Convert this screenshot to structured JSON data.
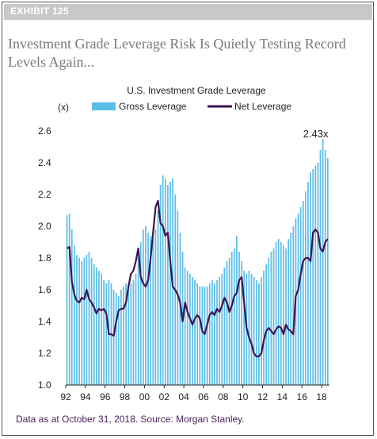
{
  "exhibit": {
    "label": "EXHIBIT 125"
  },
  "headline": "Investment Grade Leverage Risk Is Quietly Testing Record Levels Again...",
  "source": "Data as at October 31, 2018. Source: Morgan Stanley.",
  "colors": {
    "gross": "#5bbde8",
    "net": "#3a1650",
    "exhibit_bar": "#c8c8c8",
    "source_text": "#4b1e5a"
  },
  "chart_data": {
    "type": "bar",
    "title": "U.S. Investment Grade Leverage",
    "ylabel": "(x)",
    "ylim": [
      1.0,
      2.6
    ],
    "yticks": [
      "1.0",
      "1.2",
      "1.4",
      "1.6",
      "1.8",
      "2.0",
      "2.2",
      "2.4",
      "2.6"
    ],
    "xticks": [
      "92",
      "94",
      "96",
      "98",
      "00",
      "02",
      "04",
      "06",
      "08",
      "10",
      "12",
      "14",
      "16",
      "18"
    ],
    "xrange": [
      1992,
      2018.8
    ],
    "legend": [
      "Gross Leverage",
      "Net Leverage"
    ],
    "legend_position": "top",
    "annotation": {
      "text": "2.43x",
      "x": 2017.4,
      "y": 2.55
    },
    "series": [
      {
        "name": "Gross Leverage",
        "type": "bar",
        "x": [
          1992.0,
          1992.25,
          1992.5,
          1992.75,
          1993.0,
          1993.25,
          1993.5,
          1993.75,
          1994.0,
          1994.25,
          1994.5,
          1994.75,
          1995.0,
          1995.25,
          1995.5,
          1995.75,
          1996.0,
          1996.25,
          1996.5,
          1996.75,
          1997.0,
          1997.25,
          1997.5,
          1997.75,
          1998.0,
          1998.25,
          1998.5,
          1998.75,
          1999.0,
          1999.25,
          1999.5,
          1999.75,
          2000.0,
          2000.25,
          2000.5,
          2000.75,
          2001.0,
          2001.25,
          2001.5,
          2001.75,
          2002.0,
          2002.25,
          2002.5,
          2002.75,
          2003.0,
          2003.25,
          2003.5,
          2003.75,
          2004.0,
          2004.25,
          2004.5,
          2004.75,
          2005.0,
          2005.25,
          2005.5,
          2005.75,
          2006.0,
          2006.25,
          2006.5,
          2006.75,
          2007.0,
          2007.25,
          2007.5,
          2007.75,
          2008.0,
          2008.25,
          2008.5,
          2008.75,
          2009.0,
          2009.25,
          2009.5,
          2009.75,
          2010.0,
          2010.25,
          2010.5,
          2010.75,
          2011.0,
          2011.25,
          2011.5,
          2011.75,
          2012.0,
          2012.25,
          2012.5,
          2012.75,
          2013.0,
          2013.25,
          2013.5,
          2013.75,
          2014.0,
          2014.25,
          2014.5,
          2014.75,
          2015.0,
          2015.25,
          2015.5,
          2015.75,
          2016.0,
          2016.25,
          2016.5,
          2016.75,
          2017.0,
          2017.25,
          2017.5,
          2017.75,
          2018.0,
          2018.25,
          2018.5
        ],
        "values": [
          2.07,
          2.08,
          1.98,
          1.88,
          1.82,
          1.8,
          1.78,
          1.8,
          1.82,
          1.84,
          1.8,
          1.76,
          1.74,
          1.72,
          1.7,
          1.66,
          1.64,
          1.66,
          1.64,
          1.6,
          1.58,
          1.56,
          1.6,
          1.62,
          1.64,
          1.62,
          1.64,
          1.66,
          1.7,
          1.8,
          1.9,
          1.98,
          2.0,
          1.96,
          1.94,
          1.92,
          1.98,
          2.1,
          2.26,
          2.32,
          2.3,
          2.26,
          2.28,
          2.3,
          2.2,
          2.1,
          1.96,
          1.84,
          1.74,
          1.72,
          1.7,
          1.68,
          1.66,
          1.64,
          1.62,
          1.62,
          1.62,
          1.62,
          1.64,
          1.66,
          1.64,
          1.66,
          1.68,
          1.7,
          1.74,
          1.78,
          1.8,
          1.84,
          1.86,
          1.94,
          1.84,
          1.78,
          1.72,
          1.7,
          1.72,
          1.7,
          1.68,
          1.66,
          1.64,
          1.68,
          1.72,
          1.76,
          1.8,
          1.84,
          1.86,
          1.9,
          1.92,
          1.9,
          1.88,
          1.86,
          1.92,
          1.96,
          2.0,
          2.05,
          2.08,
          2.12,
          2.16,
          2.22,
          2.28,
          2.34,
          2.36,
          2.38,
          2.4,
          2.48,
          2.55,
          2.48,
          2.43
        ]
      },
      {
        "name": "Net Leverage",
        "type": "line",
        "x": [
          1992.0,
          1992.25,
          1992.5,
          1992.75,
          1993.0,
          1993.25,
          1993.5,
          1993.75,
          1994.0,
          1994.25,
          1994.5,
          1994.75,
          1995.0,
          1995.25,
          1995.5,
          1995.75,
          1996.0,
          1996.25,
          1996.5,
          1996.75,
          1997.0,
          1997.25,
          1997.5,
          1997.75,
          1998.0,
          1998.25,
          1998.5,
          1998.75,
          1999.0,
          1999.25,
          1999.5,
          1999.75,
          2000.0,
          2000.25,
          2000.5,
          2000.75,
          2001.0,
          2001.25,
          2001.5,
          2001.75,
          2002.0,
          2002.25,
          2002.5,
          2002.75,
          2003.0,
          2003.25,
          2003.5,
          2003.75,
          2004.0,
          2004.25,
          2004.5,
          2004.75,
          2005.0,
          2005.25,
          2005.5,
          2005.75,
          2006.0,
          2006.25,
          2006.5,
          2006.75,
          2007.0,
          2007.25,
          2007.5,
          2007.75,
          2008.0,
          2008.25,
          2008.5,
          2008.75,
          2009.0,
          2009.25,
          2009.5,
          2009.75,
          2010.0,
          2010.25,
          2010.5,
          2010.75,
          2011.0,
          2011.25,
          2011.5,
          2011.75,
          2012.0,
          2012.25,
          2012.5,
          2012.75,
          2013.0,
          2013.25,
          2013.5,
          2013.75,
          2014.0,
          2014.25,
          2014.5,
          2014.75,
          2015.0,
          2015.25,
          2015.5,
          2015.75,
          2016.0,
          2016.25,
          2016.5,
          2016.75,
          2017.0,
          2017.25,
          2017.5,
          2017.75,
          2018.0,
          2018.25,
          2018.5
        ],
        "values": [
          1.86,
          1.87,
          1.65,
          1.57,
          1.53,
          1.52,
          1.55,
          1.54,
          1.6,
          1.54,
          1.52,
          1.49,
          1.45,
          1.48,
          1.47,
          1.48,
          1.45,
          1.32,
          1.32,
          1.31,
          1.4,
          1.47,
          1.48,
          1.48,
          1.52,
          1.62,
          1.7,
          1.72,
          1.78,
          1.86,
          1.68,
          1.64,
          1.62,
          1.66,
          1.8,
          1.96,
          2.12,
          2.16,
          2.02,
          2.0,
          1.94,
          1.96,
          1.78,
          1.62,
          1.6,
          1.57,
          1.52,
          1.4,
          1.52,
          1.46,
          1.42,
          1.38,
          1.42,
          1.44,
          1.42,
          1.34,
          1.32,
          1.38,
          1.44,
          1.46,
          1.44,
          1.48,
          1.46,
          1.5,
          1.55,
          1.52,
          1.46,
          1.5,
          1.56,
          1.58,
          1.66,
          1.68,
          1.52,
          1.36,
          1.3,
          1.26,
          1.2,
          1.18,
          1.18,
          1.2,
          1.28,
          1.34,
          1.36,
          1.34,
          1.32,
          1.35,
          1.37,
          1.36,
          1.32,
          1.38,
          1.35,
          1.34,
          1.32,
          1.56,
          1.6,
          1.7,
          1.78,
          1.8,
          1.8,
          1.78,
          1.96,
          1.98,
          1.96,
          1.86,
          1.84,
          1.9,
          1.92
        ]
      }
    ]
  }
}
